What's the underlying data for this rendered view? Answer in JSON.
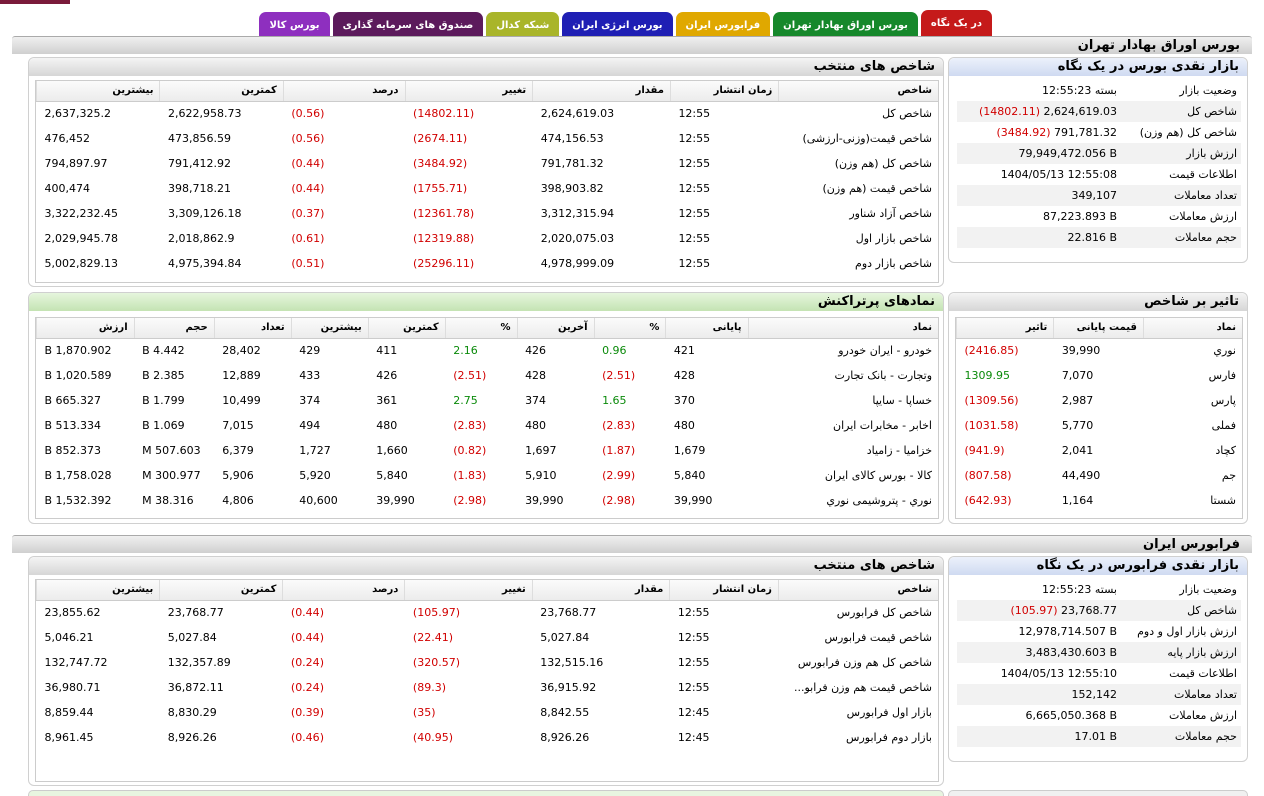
{
  "tabs": [
    {
      "label": "در یک نگاه",
      "color": "#c51a1a",
      "active": true
    },
    {
      "label": "بورس اوراق بهادار تهران",
      "color": "#16882b"
    },
    {
      "label": "فرابورس ایران",
      "color": "#e0a800"
    },
    {
      "label": "بورس انرژی ایران",
      "color": "#1f1fb4"
    },
    {
      "label": "شبکه کدال",
      "color": "#a9b52a"
    },
    {
      "label": "صندوق های سرمایه گذاری",
      "color": "#5c1a5c"
    },
    {
      "label": "بورس کالا",
      "color": "#8e2fbf"
    }
  ],
  "tse": {
    "section_title": "بورس اوراق بهادار تهران",
    "overview": {
      "title": "بازار نقدی بورس در یک نگاه",
      "rows": [
        {
          "label": "وضعیت بازار",
          "value": "بسته 12:55:23"
        },
        {
          "label": "شاخص کل",
          "value": "2,624,619.03",
          "change": "(14802.11)"
        },
        {
          "label": "شاخص کل (هم وزن)",
          "value": "791,781.32",
          "change": "(3484.92)"
        },
        {
          "label": "ارزش بازار",
          "value": "79,949,472.056 B"
        },
        {
          "label": "اطلاعات قیمت",
          "value": "1404/05/13 12:55:08"
        },
        {
          "label": "تعداد معاملات",
          "value": "349,107"
        },
        {
          "label": "ارزش معاملات",
          "value": "87,223.893 B"
        },
        {
          "label": "حجم معاملات",
          "value": "22.816 B"
        }
      ]
    },
    "indices": {
      "title": "شاخص های منتخب",
      "headers": [
        "شاخص",
        "زمان انتشار",
        "مقدار",
        "تغییر",
        "درصد",
        "کمترین",
        "بیشترین"
      ],
      "rows": [
        [
          "شاخص کل",
          "12:55",
          "2,624,619.03",
          "(14802.11)",
          "(0.56)",
          "2,622,958.73",
          "2,637,325.2"
        ],
        [
          "شاخص قیمت(وزنی-ارزشی)",
          "12:55",
          "474,156.53",
          "(2674.11)",
          "(0.56)",
          "473,856.59",
          "476,452"
        ],
        [
          "شاخص کل (هم وزن)",
          "12:55",
          "791,781.32",
          "(3484.92)",
          "(0.44)",
          "791,412.92",
          "794,897.97"
        ],
        [
          "شاخص قیمت (هم وزن)",
          "12:55",
          "398,903.82",
          "(1755.71)",
          "(0.44)",
          "398,718.21",
          "400,474"
        ],
        [
          "شاخص آزاد شناور",
          "12:55",
          "3,312,315.94",
          "(12361.78)",
          "(0.37)",
          "3,309,126.18",
          "3,322,232.45"
        ],
        [
          "شاخص بازار اول",
          "12:55",
          "2,020,075.03",
          "(12319.88)",
          "(0.61)",
          "2,018,862.9",
          "2,029,945.78"
        ],
        [
          "شاخص بازار دوم",
          "12:55",
          "4,978,999.09",
          "(25296.11)",
          "(0.51)",
          "4,975,394.84",
          "5,002,829.13"
        ]
      ]
    },
    "influence": {
      "title": "تاثیر بر شاخص",
      "headers": [
        "نماد",
        "قیمت پایانی",
        "تاثیر"
      ],
      "rows": [
        [
          "نوري",
          "39,990",
          "(2416.85)"
        ],
        [
          "فارس",
          "7,070",
          "1309.95"
        ],
        [
          "پارس",
          "2,987",
          "(1309.56)"
        ],
        [
          "فملی",
          "5,770",
          "(1031.58)"
        ],
        [
          "کچاد",
          "2,041",
          "(941.9)"
        ],
        [
          "جم",
          "44,490",
          "(807.58)"
        ],
        [
          "شستا",
          "1,164",
          "(642.93)"
        ]
      ]
    },
    "hot": {
      "title": "نمادهای پرتراکنش",
      "headers": [
        "نماد",
        "پایانی",
        "%",
        "آخرین",
        "%",
        "کمترین",
        "بیشترین",
        "تعداد",
        "حجم",
        "ارزش"
      ],
      "rows": [
        [
          "خودرو - ایران خودرو",
          "421",
          "0.96",
          "426",
          "2.16",
          "411",
          "429",
          "28,402",
          "4.442 B",
          "1,870.902 B"
        ],
        [
          "وتجارت - بانک تجارت",
          "428",
          "(2.51)",
          "428",
          "(2.51)",
          "426",
          "433",
          "12,889",
          "2.385 B",
          "1,020.589 B"
        ],
        [
          "خساپا - سایپا",
          "370",
          "1.65",
          "374",
          "2.75",
          "361",
          "374",
          "10,499",
          "1.799 B",
          "665.327 B"
        ],
        [
          "اخابر - مخابرات ایران",
          "480",
          "(2.83)",
          "480",
          "(2.83)",
          "480",
          "494",
          "7,015",
          "1.069 B",
          "513.334 B"
        ],
        [
          "خزامیا - زامیاد",
          "1,679",
          "(1.87)",
          "1,697",
          "(0.82)",
          "1,660",
          "1,727",
          "6,379",
          "507.603 M",
          "852.373 B"
        ],
        [
          "کالا - بورس کالای ایران",
          "5,840",
          "(2.99)",
          "5,910",
          "(1.83)",
          "5,840",
          "5,920",
          "5,906",
          "300.977 M",
          "1,758.028 B"
        ],
        [
          "نوري - پتروشیمی نوري",
          "39,990",
          "(2.98)",
          "39,990",
          "(2.98)",
          "39,990",
          "40,600",
          "4,806",
          "38.316 M",
          "1,532.392 B"
        ]
      ]
    }
  },
  "ifb": {
    "section_title": "فرابورس ایران",
    "overview": {
      "title": "بازار نقدی فرابورس در یک نگاه",
      "rows": [
        {
          "label": "وضعیت بازار",
          "value": "بسته 12:55:23"
        },
        {
          "label": "شاخص کل",
          "value": "23,768.77",
          "change": "(105.97)"
        },
        {
          "label": "ارزش بازار اول و دوم",
          "value": "12,978,714.507 B"
        },
        {
          "label": "ارزش بازار پایه",
          "value": "3,483,430.603 B"
        },
        {
          "label": "اطلاعات قیمت",
          "value": "1404/05/13 12:55:10"
        },
        {
          "label": "تعداد معاملات",
          "value": "152,142"
        },
        {
          "label": "ارزش معاملات",
          "value": "6,665,050.368 B"
        },
        {
          "label": "حجم معاملات",
          "value": "17.01 B"
        }
      ]
    },
    "indices": {
      "title": "شاخص های منتخب",
      "headers": [
        "شاخص",
        "زمان انتشار",
        "مقدار",
        "تغییر",
        "درصد",
        "کمترین",
        "بیشترین"
      ],
      "rows": [
        [
          "شاخص کل فرابورس",
          "12:55",
          "23,768.77",
          "(105.97)",
          "(0.44)",
          "23,768.77",
          "23,855.62"
        ],
        [
          "شاخص قیمت فرابورس",
          "12:55",
          "5,027.84",
          "(22.41)",
          "(0.44)",
          "5,027.84",
          "5,046.21"
        ],
        [
          "شاخص کل هم وزن فرابورس",
          "12:55",
          "132,515.16",
          "(320.57)",
          "(0.24)",
          "132,357.89",
          "132,747.72"
        ],
        [
          "شاخص قیمت هم وزن فرابو...",
          "12:55",
          "36,915.92",
          "(89.3)",
          "(0.24)",
          "36,872.11",
          "36,980.71"
        ],
        [
          "بازار اول فرابورس",
          "12:45",
          "8,842.55",
          "(35)",
          "(0.39)",
          "8,830.29",
          "8,859.44"
        ],
        [
          "بازار دوم فرابورس",
          "12:45",
          "8,926.26",
          "(40.95)",
          "(0.46)",
          "8,926.26",
          "8,961.45"
        ]
      ]
    }
  }
}
